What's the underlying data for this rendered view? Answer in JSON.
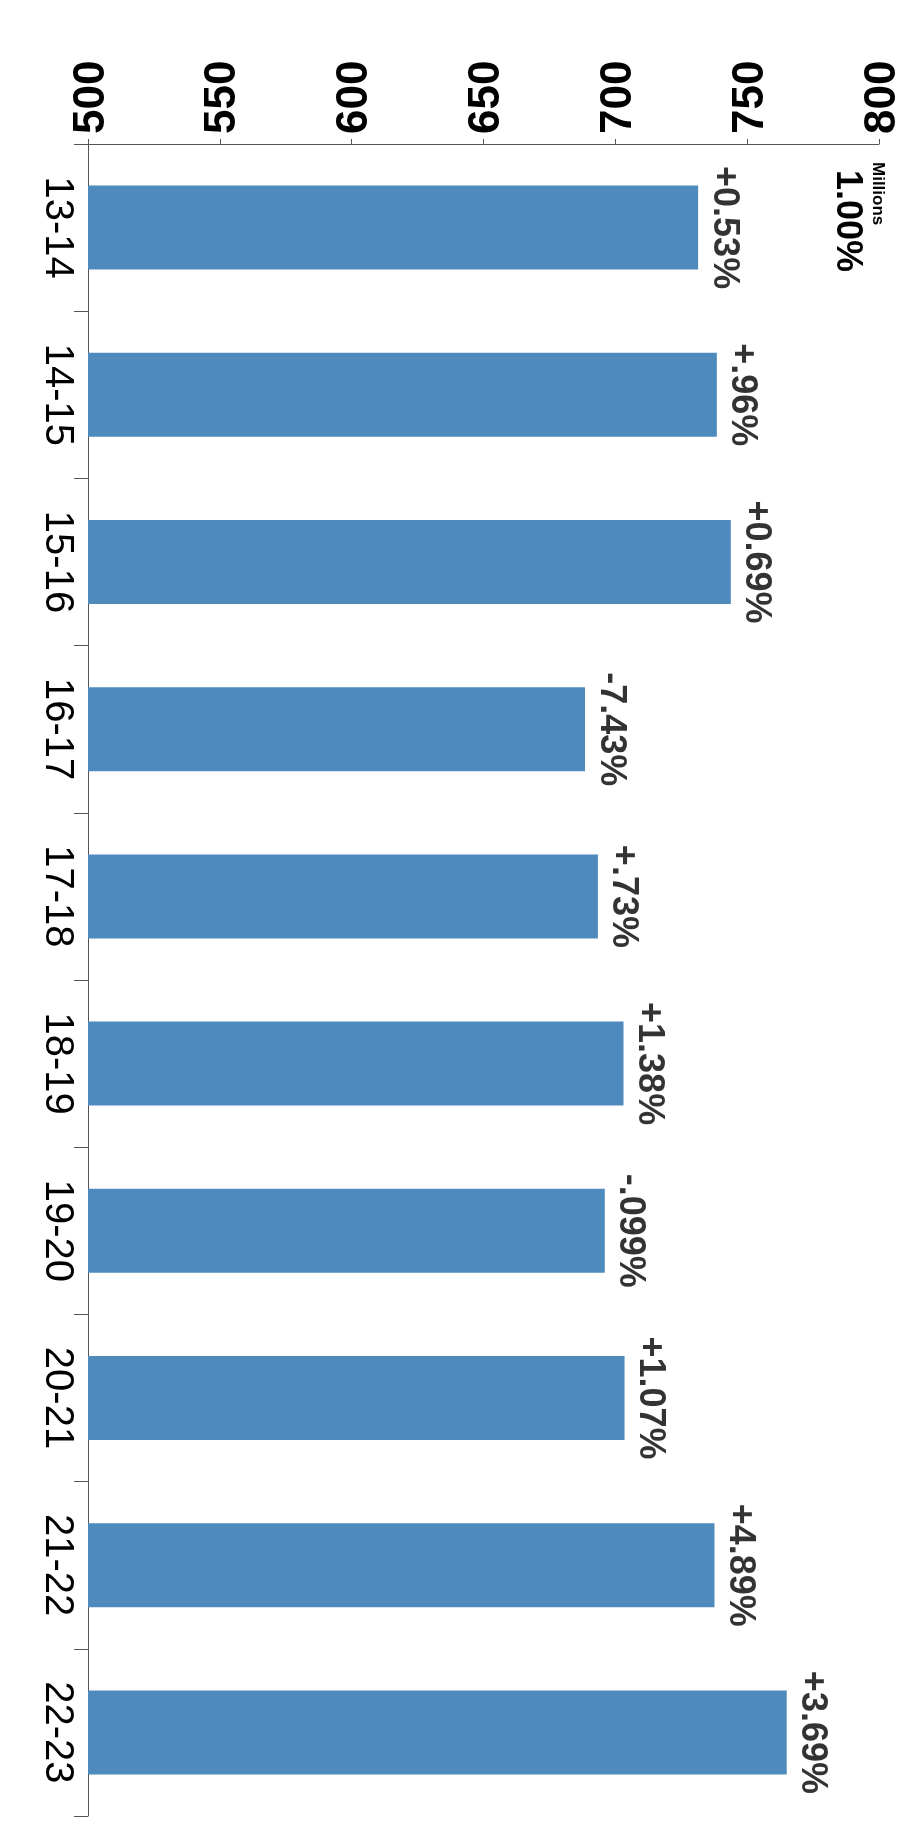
{
  "chart_data": {
    "type": "bar",
    "orientation": "horizontal",
    "annotations": [
      "Millions",
      "1.00%",
      {
        "text": "+0.53%",
        "x": 731.4,
        "y": "13-14"
      },
      {
        "text": "+.96%",
        "x": 738.5,
        "y": "14-15"
      },
      {
        "text": "+0.69%",
        "x": 743.8,
        "y": "15-16"
      },
      {
        "text": "-7.43%",
        "x": 688.5,
        "y": "16-17"
      },
      {
        "text": "+.73%",
        "x": 693.4,
        "y": "17-18"
      },
      {
        "text": "+1.38%",
        "x": 703.1,
        "y": "18-19"
      },
      {
        "text": "-.099%",
        "x": 696.0,
        "y": "19-20"
      },
      {
        "text": "+1.07%",
        "x": 703.5,
        "y": "20-21"
      },
      {
        "text": "+4.89%",
        "x": 737.6,
        "y": "21-22"
      },
      {
        "text": "+3.69%",
        "x": 765.0,
        "y": "22-23"
      }
    ],
    "categories": [
      "13-14",
      "14-15",
      "15-16",
      "16-17",
      "17-18",
      "18-19",
      "19-20",
      "20-21",
      "21-22",
      "22-23"
    ],
    "values": [
      731.4,
      738.5,
      743.8,
      688.5,
      693.4,
      703.1,
      696.0,
      703.5,
      737.6,
      765.0
    ],
    "color": "#4f8abd",
    "xlim": [
      500,
      800
    ],
    "xticks": [
      500,
      550,
      600,
      650,
      700,
      750,
      800
    ],
    "grid": false
  }
}
